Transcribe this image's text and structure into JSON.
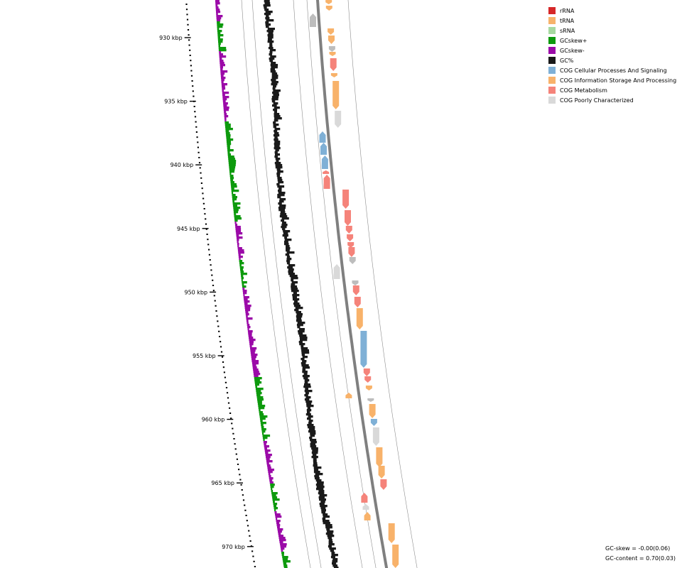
{
  "axis": {
    "ticks": [
      "930 kbp",
      "935 kbp",
      "940 kbp",
      "945 kbp",
      "950 kbp",
      "955 kbp",
      "960 kbp",
      "965 kbp",
      "970 kbp"
    ]
  },
  "legend": [
    {
      "label": "rRNA",
      "color": "#d62728"
    },
    {
      "label": "tRNA",
      "color": "#f7b36b"
    },
    {
      "label": "sRNA",
      "color": "#a6d9a0"
    },
    {
      "label": "GCskew+",
      "color": "#0d9a0d"
    },
    {
      "label": "GCskew-",
      "color": "#9b0aa8"
    },
    {
      "label": "GC%",
      "color": "#1a1a1a"
    },
    {
      "label": "COG Cellular Processes And Signaling",
      "color": "#7fb0d6"
    },
    {
      "label": "COG Information Storage And Processing",
      "color": "#f8b26a"
    },
    {
      "label": "COG Metabolism",
      "color": "#f5837a"
    },
    {
      "label": "COG Poorly Characterized",
      "color": "#d9d9d9"
    }
  ],
  "stats": {
    "gc_skew": "GC-skew = -0.00(0.06)",
    "gc_content": "GC-content = 0.70(0.03)"
  }
}
